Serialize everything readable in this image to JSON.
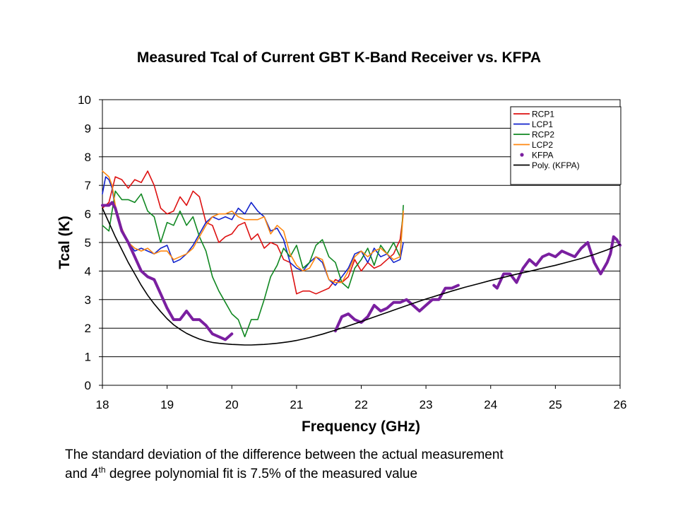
{
  "chart_data": {
    "type": "line",
    "title": "Measured Tcal of Current GBT K-Band Receiver vs. KFPA",
    "xlabel": "Frequency (GHz)",
    "ylabel": "Tcal (K)",
    "xlim": [
      18,
      26
    ],
    "ylim": [
      0,
      10
    ],
    "x_ticks": [
      "18",
      "19",
      "20",
      "21",
      "22",
      "23",
      "24",
      "25",
      "26"
    ],
    "y_ticks": [
      "0",
      "1",
      "2",
      "3",
      "4",
      "5",
      "6",
      "7",
      "8",
      "9",
      "10"
    ],
    "grid": "horizontal",
    "legend_position": "top-right",
    "series": [
      {
        "name": "RCP1",
        "color": "#dd1111",
        "x": [
          18.0,
          18.1,
          18.2,
          18.3,
          18.4,
          18.5,
          18.6,
          18.7,
          18.8,
          18.9,
          19.0,
          19.1,
          19.2,
          19.3,
          19.4,
          19.5,
          19.6,
          19.7,
          19.8,
          19.9,
          20.0,
          20.1,
          20.2,
          20.3,
          20.4,
          20.5,
          20.6,
          20.7,
          20.8,
          20.9,
          21.0,
          21.1,
          21.2,
          21.3,
          21.4,
          21.5,
          21.6,
          21.7,
          21.8,
          21.9,
          22.0,
          22.1,
          22.2,
          22.3,
          22.4,
          22.5,
          22.6,
          22.65
        ],
        "y": [
          6.2,
          6.4,
          7.3,
          7.2,
          6.9,
          7.2,
          7.1,
          7.5,
          7.0,
          6.2,
          6.0,
          6.1,
          6.6,
          6.3,
          6.8,
          6.6,
          5.7,
          5.6,
          5.0,
          5.2,
          5.3,
          5.6,
          5.7,
          5.1,
          5.3,
          4.8,
          5.0,
          4.9,
          4.4,
          4.3,
          3.2,
          3.3,
          3.3,
          3.2,
          3.3,
          3.4,
          3.7,
          3.6,
          3.8,
          4.4,
          4.0,
          4.3,
          4.1,
          4.2,
          4.4,
          4.6,
          5.1,
          6.0
        ]
      },
      {
        "name": "LCP1",
        "color": "#1122cc",
        "x": [
          18.0,
          18.05,
          18.1,
          18.15,
          18.2,
          18.3,
          18.4,
          18.5,
          18.6,
          18.7,
          18.8,
          18.9,
          19.0,
          19.1,
          19.2,
          19.3,
          19.4,
          19.5,
          19.6,
          19.7,
          19.8,
          19.9,
          20.0,
          20.1,
          20.2,
          20.3,
          20.4,
          20.5,
          20.6,
          20.7,
          20.8,
          20.9,
          21.0,
          21.1,
          21.2,
          21.3,
          21.4,
          21.5,
          21.6,
          21.7,
          21.8,
          21.9,
          22.0,
          22.1,
          22.2,
          22.3,
          22.4,
          22.5,
          22.6,
          22.65
        ],
        "y": [
          6.7,
          7.3,
          7.2,
          6.9,
          6.2,
          5.4,
          5.0,
          4.7,
          4.8,
          4.7,
          4.6,
          4.8,
          4.9,
          4.3,
          4.4,
          4.6,
          4.9,
          5.3,
          5.7,
          5.9,
          5.8,
          5.9,
          5.8,
          6.2,
          6.0,
          6.4,
          6.1,
          5.9,
          5.4,
          5.5,
          5.1,
          4.3,
          4.1,
          4.0,
          4.3,
          4.5,
          4.3,
          3.7,
          3.5,
          3.8,
          4.1,
          4.6,
          4.7,
          4.3,
          4.8,
          4.5,
          4.6,
          4.3,
          4.4,
          5.0
        ]
      },
      {
        "name": "RCP2",
        "color": "#118822",
        "x": [
          18.0,
          18.1,
          18.2,
          18.3,
          18.4,
          18.5,
          18.6,
          18.7,
          18.8,
          18.9,
          19.0,
          19.1,
          19.2,
          19.3,
          19.4,
          19.5,
          19.6,
          19.7,
          19.8,
          19.9,
          20.0,
          20.1,
          20.15,
          20.2,
          20.3,
          20.4,
          20.5,
          20.6,
          20.7,
          20.8,
          20.9,
          21.0,
          21.1,
          21.2,
          21.3,
          21.4,
          21.5,
          21.6,
          21.7,
          21.8,
          21.9,
          22.0,
          22.1,
          22.2,
          22.3,
          22.4,
          22.5,
          22.6,
          22.65
        ],
        "y": [
          5.6,
          5.4,
          6.8,
          6.5,
          6.5,
          6.4,
          6.7,
          6.1,
          5.9,
          5.0,
          5.7,
          5.6,
          6.1,
          5.6,
          5.9,
          5.2,
          4.7,
          3.8,
          3.3,
          2.9,
          2.5,
          2.3,
          2.0,
          1.7,
          2.3,
          2.3,
          3.0,
          3.8,
          4.2,
          4.8,
          4.5,
          4.9,
          4.1,
          4.3,
          4.9,
          5.1,
          4.5,
          4.3,
          3.6,
          3.4,
          4.1,
          4.4,
          4.8,
          4.2,
          4.9,
          4.6,
          5.0,
          4.5,
          6.3
        ]
      },
      {
        "name": "LCP2",
        "color": "#ff8811",
        "x": [
          18.0,
          18.05,
          18.1,
          18.15,
          18.2,
          18.3,
          18.4,
          18.5,
          18.6,
          18.7,
          18.8,
          18.9,
          19.0,
          19.1,
          19.2,
          19.3,
          19.4,
          19.5,
          19.6,
          19.7,
          19.8,
          19.9,
          20.0,
          20.1,
          20.2,
          20.3,
          20.4,
          20.5,
          20.6,
          20.7,
          20.8,
          20.9,
          21.0,
          21.1,
          21.2,
          21.3,
          21.4,
          21.5,
          21.6,
          21.7,
          21.8,
          21.9,
          22.0,
          22.1,
          22.2,
          22.3,
          22.4,
          22.5,
          22.6,
          22.65
        ],
        "y": [
          7.5,
          7.4,
          7.3,
          7.0,
          6.3,
          5.5,
          5.0,
          4.8,
          4.7,
          4.8,
          4.6,
          4.7,
          4.7,
          4.4,
          4.5,
          4.6,
          4.8,
          5.2,
          5.6,
          5.9,
          6.0,
          6.0,
          6.1,
          5.9,
          5.8,
          5.8,
          5.8,
          5.9,
          5.3,
          5.6,
          5.4,
          4.6,
          4.2,
          4.0,
          4.1,
          4.5,
          4.4,
          3.7,
          3.6,
          3.6,
          4.0,
          4.5,
          4.7,
          4.5,
          4.7,
          4.8,
          4.6,
          4.4,
          4.5,
          6.1
        ]
      },
      {
        "name": "KFPA",
        "color": "#7a1fa0",
        "x": [
          18.0,
          18.1,
          18.15,
          18.2,
          18.3,
          18.4,
          18.5,
          18.6,
          18.7,
          18.8,
          18.9,
          19.0,
          19.1,
          19.2,
          19.3,
          19.4,
          19.5,
          19.6,
          19.7,
          19.8,
          19.9,
          20.0,
          null,
          21.6,
          21.7,
          21.8,
          21.9,
          22.0,
          22.1,
          22.2,
          22.3,
          22.4,
          22.5,
          22.6,
          22.7,
          22.8,
          22.9,
          23.0,
          23.1,
          23.2,
          23.3,
          23.4,
          23.5,
          null,
          24.05,
          24.1,
          24.2,
          24.3,
          24.4,
          24.5,
          24.6,
          24.7,
          24.8,
          24.9,
          25.0,
          25.1,
          25.2,
          25.3,
          25.4,
          25.5,
          25.6,
          25.7,
          25.8,
          25.85,
          25.9,
          25.95,
          26.0
        ],
        "y": [
          6.3,
          6.3,
          6.4,
          6.2,
          5.4,
          5.0,
          4.5,
          4.0,
          3.8,
          3.7,
          3.2,
          2.7,
          2.3,
          2.3,
          2.6,
          2.3,
          2.3,
          2.1,
          1.8,
          1.7,
          1.6,
          1.8,
          null,
          1.9,
          2.4,
          2.5,
          2.3,
          2.2,
          2.4,
          2.8,
          2.6,
          2.7,
          2.9,
          2.9,
          3.0,
          2.8,
          2.6,
          2.8,
          3.0,
          3.0,
          3.4,
          3.4,
          3.5,
          null,
          3.5,
          3.4,
          3.9,
          3.9,
          3.6,
          4.1,
          4.4,
          4.2,
          4.5,
          4.6,
          4.5,
          4.7,
          4.6,
          4.5,
          4.8,
          5.0,
          4.3,
          3.9,
          4.3,
          4.6,
          5.2,
          5.1,
          4.9
        ]
      },
      {
        "name": "Poly. (KFPA)",
        "color": "#000000",
        "x": [
          18.0,
          18.1,
          18.2,
          18.3,
          18.4,
          18.5,
          18.6,
          18.7,
          18.8,
          18.9,
          19.0,
          19.1,
          19.2,
          19.3,
          19.4,
          19.5,
          19.6,
          19.7,
          19.8,
          19.9,
          20.0,
          20.1,
          20.2,
          20.3,
          20.4,
          20.5,
          20.6,
          20.7,
          20.8,
          20.9,
          21.0,
          21.2,
          21.4,
          21.6,
          21.8,
          22.0,
          22.2,
          22.4,
          22.6,
          22.8,
          23.0,
          23.2,
          23.4,
          23.6,
          23.8,
          24.0,
          24.2,
          24.4,
          24.6,
          24.8,
          25.0,
          25.2,
          25.4,
          25.6,
          25.8,
          26.0
        ],
        "y": [
          6.2,
          5.7,
          5.2,
          4.75,
          4.3,
          3.9,
          3.5,
          3.15,
          2.85,
          2.58,
          2.33,
          2.12,
          1.96,
          1.82,
          1.71,
          1.62,
          1.55,
          1.5,
          1.47,
          1.45,
          1.43,
          1.42,
          1.41,
          1.41,
          1.42,
          1.43,
          1.45,
          1.47,
          1.5,
          1.53,
          1.57,
          1.67,
          1.79,
          1.93,
          2.08,
          2.23,
          2.39,
          2.55,
          2.71,
          2.87,
          3.02,
          3.16,
          3.3,
          3.43,
          3.55,
          3.67,
          3.78,
          3.89,
          3.99,
          4.1,
          4.2,
          4.32,
          4.44,
          4.58,
          4.74,
          4.93
        ]
      }
    ]
  },
  "caption": {
    "line1": "The standard deviation of the difference between the actual measurement",
    "line2_pre": "and 4",
    "line2_sup": "th",
    "line2_post": " degree polynomial fit is 7.5% of the measured value"
  }
}
